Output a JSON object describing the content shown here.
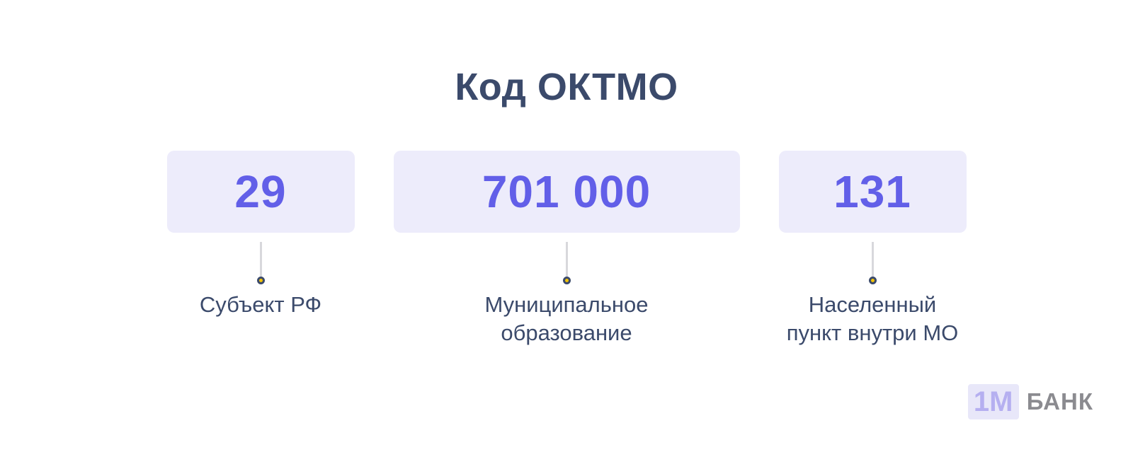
{
  "title": "Код ОКТМО",
  "segments": [
    {
      "value": "29",
      "label": "Субъект РФ"
    },
    {
      "value": "701 000",
      "label": "Муниципальное\nобразование"
    },
    {
      "value": "131",
      "label": "Населенный\nпункт внутри МО"
    }
  ],
  "logo": {
    "badge": "1М",
    "name": "БАНК"
  },
  "colors": {
    "accent": "#625fe8",
    "box_background": "#edecfb",
    "heading_text": "#3b4a6b",
    "connector_line": "#d8d8dc",
    "dot_fill": "#f2c307",
    "dot_border": "#3b4a6b",
    "logo_badge_background": "#e8e7f9",
    "logo_badge_text": "#b5aff0",
    "logo_name_text": "#8b8b90",
    "page_background": "#ffffff"
  }
}
